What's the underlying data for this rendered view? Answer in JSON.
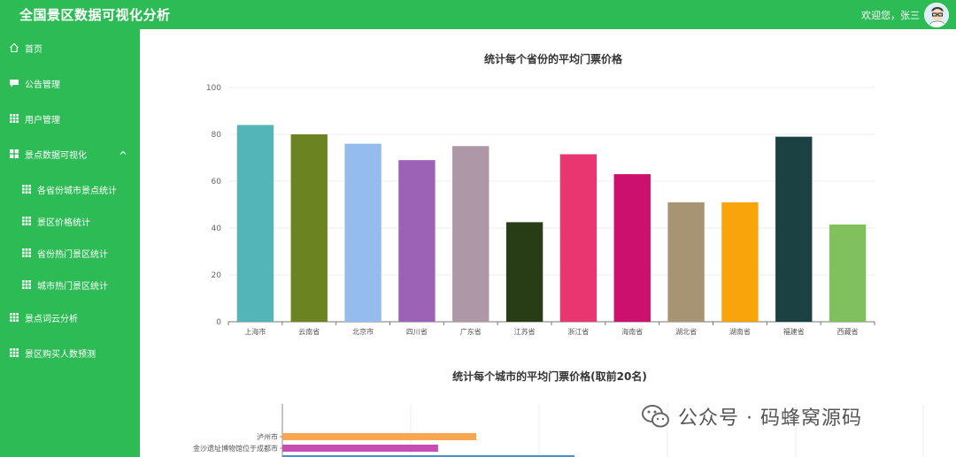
{
  "header": {
    "title": "全国景区数据可视化分析",
    "welcome": "欢迎您，张三"
  },
  "sidebar": {
    "items": [
      {
        "label": "首页",
        "icon": "home-icon"
      },
      {
        "label": "公告管理",
        "icon": "message-icon"
      },
      {
        "label": "用户管理",
        "icon": "grid-icon"
      },
      {
        "label": "景点数据可视化",
        "icon": "grid-icon",
        "expanded": true
      },
      {
        "label": "各省份城市景点统计",
        "icon": "grid-icon"
      },
      {
        "label": "景区价格统计",
        "icon": "grid-icon"
      },
      {
        "label": "省份热门景区统计",
        "icon": "grid-icon"
      },
      {
        "label": "城市热门景区统计",
        "icon": "grid-icon"
      },
      {
        "label": "景点词云分析",
        "icon": "grid-icon"
      },
      {
        "label": "景区购买人数预测",
        "icon": "grid-icon"
      }
    ]
  },
  "watermark": {
    "text": "公众号 · 码蜂窝源码"
  },
  "chart_data": [
    {
      "type": "bar",
      "title": "统计每个省份的平均门票价格",
      "categories": [
        "上海市",
        "云南省",
        "北京市",
        "四川省",
        "广东省",
        "江苏省",
        "浙江省",
        "海南省",
        "湖北省",
        "湖南省",
        "福建省",
        "西藏省"
      ],
      "values": [
        84,
        80,
        76,
        69,
        75,
        42.5,
        71.5,
        63,
        51,
        51,
        79,
        41.5
      ],
      "colors": [
        "#54b5b8",
        "#6b8320",
        "#94bdee",
        "#9c62b6",
        "#ae97a7",
        "#283d15",
        "#e93570",
        "#cc106d",
        "#a69472",
        "#f9a40b",
        "#1b4143",
        "#80c15d"
      ],
      "y_ticks": [
        0,
        20,
        40,
        60,
        80,
        100
      ],
      "ylim": [
        0,
        100
      ],
      "grid": true,
      "legend": "none"
    },
    {
      "type": "bar",
      "orientation": "horizontal",
      "title": "统计每个城市的平均门票价格(取前20名)",
      "categories": [
        "泸州市",
        "金沙遗址博物馆位于成都市"
      ],
      "values": [
        66,
        53
      ],
      "colors": [
        "#f8a64f",
        "#c84db3"
      ]
    }
  ]
}
